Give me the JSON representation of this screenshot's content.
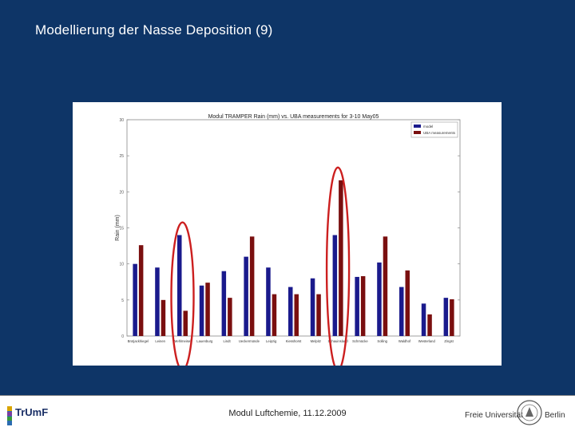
{
  "slide": {
    "title": "Modellierung der Nasse Deposition (9)",
    "footer": "Modul Luftchemie, 11.12.2009",
    "logo_left_text": "TrUmF",
    "logo_right_text_1": "Freie Universität",
    "logo_right_text_2": "Berlin"
  },
  "colors": {
    "background": "#0e3567",
    "model_bar": "#1a1a8c",
    "uba_bar": "#7a0f0f",
    "highlight_ellipse": "#cc1f1f"
  },
  "chart_data": {
    "type": "bar",
    "title": "Modul TRAMPER Rain (mm) vs. UBA measurements for 3-10 May05",
    "ylabel": "Rain (mm)",
    "xlabel": "",
    "ylim": [
      0,
      30
    ],
    "yticks": [
      "0",
      "5",
      "10",
      "15",
      "20",
      "25",
      "30"
    ],
    "grid": false,
    "legend_position": "top-right",
    "categories": [
      "Brotjacklriegel",
      "Leinen",
      "Mehlmeisel",
      "Lauenburg",
      "Lindt",
      "Ueckermünde",
      "Leipzig",
      "Kiesshorst",
      "Melpitz",
      "Schauinsland",
      "Schmücke",
      "Solling",
      "Waldhof",
      "Westerland",
      "Zingst"
    ],
    "series": [
      {
        "name": "model",
        "values": [
          10.0,
          9.5,
          14.0,
          7.0,
          9.0,
          11.0,
          9.5,
          6.8,
          8.0,
          14.0,
          8.2,
          10.2,
          6.8,
          4.5,
          5.3
        ]
      },
      {
        "name": "UBA measurements",
        "values": [
          12.6,
          5.0,
          3.5,
          7.4,
          5.3,
          13.8,
          5.8,
          5.8,
          5.8,
          21.6,
          8.3,
          13.8,
          9.1,
          3.0,
          5.1
        ]
      }
    ],
    "highlighted_categories": [
      "Mehlmeisel",
      "Schauinsland"
    ]
  }
}
